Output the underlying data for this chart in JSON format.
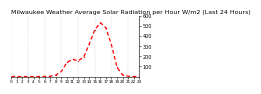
{
  "title": "Milwaukee Weather Average Solar Radiation per Hour W/m2 (Last 24 Hours)",
  "x": [
    0,
    1,
    2,
    3,
    4,
    5,
    6,
    7,
    8,
    9,
    10,
    11,
    12,
    13,
    14,
    15,
    16,
    17,
    18,
    19,
    20,
    21,
    22,
    23
  ],
  "y": [
    0,
    0,
    0,
    0,
    0,
    0,
    1,
    3,
    15,
    50,
    140,
    170,
    155,
    190,
    320,
    460,
    530,
    480,
    310,
    90,
    15,
    3,
    0,
    0
  ],
  "line_color": "#ff0000",
  "bg_color": "#ffffff",
  "grid_color": "#bbbbbb",
  "ylim": [
    0,
    600
  ],
  "xlim": [
    0,
    23
  ],
  "yticks": [
    100,
    200,
    300,
    400,
    500,
    600
  ],
  "title_fontsize": 4.5,
  "tick_fontsize": 3.5,
  "linewidth": 0.9,
  "dash_on": 3,
  "dash_off": 2,
  "grid_positions": [
    0,
    3,
    6,
    9,
    12,
    15,
    18,
    21,
    23
  ],
  "marker_size": 1.2
}
